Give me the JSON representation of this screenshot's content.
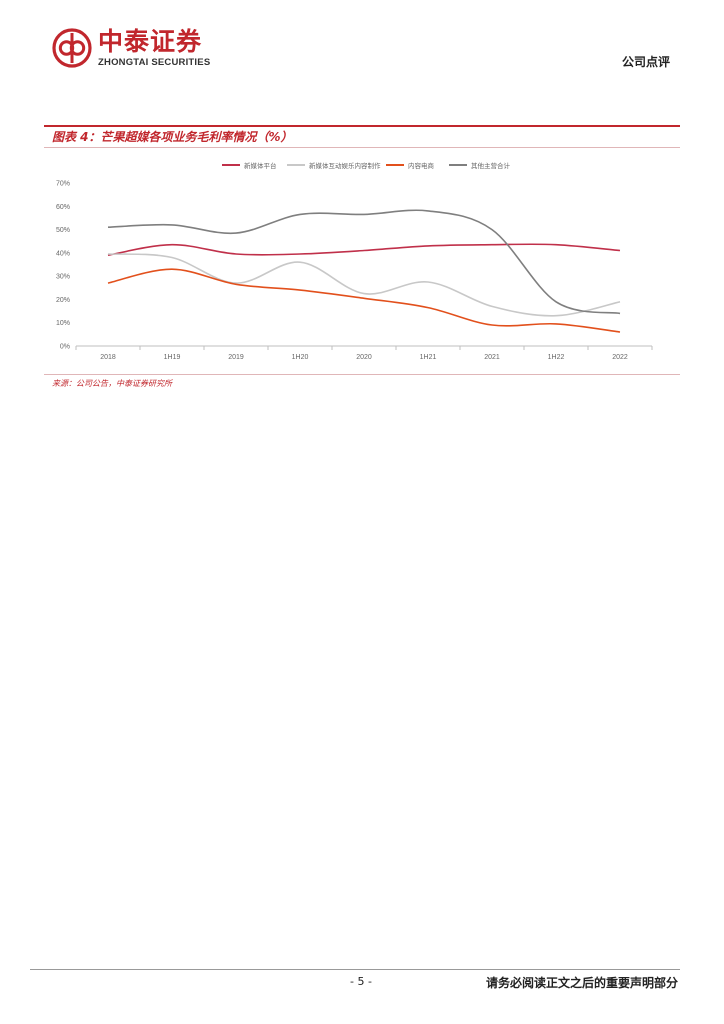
{
  "header": {
    "logo_cn": "中泰证券",
    "logo_en": "ZHONGTAI SECURITIES",
    "report_type": "公司点评",
    "brand_color": "#c1272d"
  },
  "figure": {
    "title": "图表 4：芒果超媒各项业务毛利率情况（%）",
    "source": "来源：公司公告，中泰证券研究所"
  },
  "chart_data": {
    "type": "line",
    "categories": [
      "2018",
      "1H19",
      "2019",
      "1H20",
      "2020",
      "1H21",
      "2021",
      "1H22",
      "2022"
    ],
    "ylim": [
      0,
      70
    ],
    "yticks": [
      "0%",
      "10%",
      "20%",
      "30%",
      "40%",
      "50%",
      "60%",
      "70%"
    ],
    "grid": false,
    "legend_position": "top",
    "series": [
      {
        "name": "新媒体平台",
        "color": "#c0304a",
        "values": [
          39,
          43.5,
          39.5,
          39.5,
          41,
          43,
          43.5,
          43.5,
          41
        ]
      },
      {
        "name": "新媒体互动娱乐内容制作",
        "color": "#c8c8c8",
        "values": [
          39.5,
          38,
          27,
          36,
          22.5,
          27.5,
          17,
          13,
          19
        ]
      },
      {
        "name": "内容电商",
        "color": "#e2501c",
        "values": [
          27,
          33,
          26.5,
          24,
          20.5,
          16.5,
          9,
          9.5,
          6
        ]
      },
      {
        "name": "其他主营合计",
        "color": "#7f7f7f",
        "values": [
          51,
          52,
          48.5,
          56.5,
          56.5,
          58,
          50,
          19,
          14
        ]
      }
    ]
  },
  "footer": {
    "page_number": "- 5 -",
    "disclaimer": "请务必阅读正文之后的重要声明部分"
  }
}
